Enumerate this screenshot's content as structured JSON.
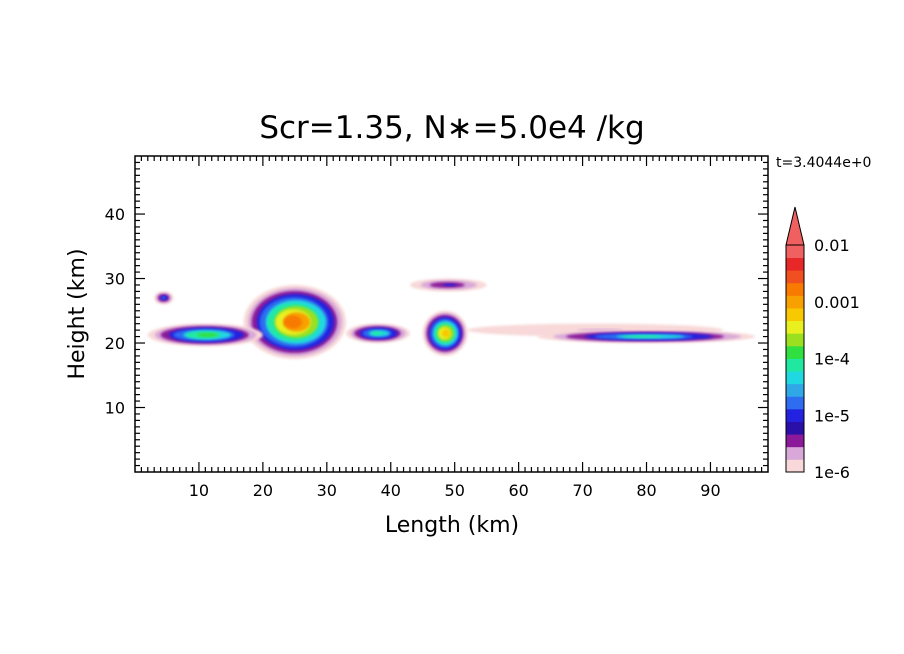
{
  "chart_data": {
    "type": "heatmap",
    "title": "Scr=1.35, N∗=5.0e4 /kg",
    "time_label": "t=3.4044e+0",
    "xlabel": "Length  (km)",
    "ylabel": "Height  (km)",
    "xlim": [
      0,
      99
    ],
    "ylim": [
      0,
      49
    ],
    "x_ticks": [
      10,
      20,
      30,
      40,
      50,
      60,
      70,
      80,
      90
    ],
    "y_ticks": [
      10,
      20,
      30,
      40
    ],
    "colorbar": {
      "scale": "log",
      "range": [
        1e-06,
        0.01
      ],
      "labels": [
        "0.01",
        "0.001",
        "1e-4",
        "1e-5",
        "1e-6"
      ],
      "label_values": [
        0.01,
        0.001,
        0.0001,
        1e-05,
        1e-06
      ],
      "extend": "max",
      "colors": [
        "#f8d8d8",
        "#d8a8d8",
        "#8a1a9a",
        "#2a10a8",
        "#2222e0",
        "#2e6cf0",
        "#30a8e8",
        "#20d8e0",
        "#20e8a0",
        "#30e040",
        "#9ae020",
        "#e8f020",
        "#f8c800",
        "#f8a000",
        "#f87a00",
        "#f05020",
        "#e82828",
        "#f06060"
      ]
    },
    "regions": [
      {
        "name": "core-main",
        "x": [
          17,
          33
        ],
        "y": [
          17.5,
          29
        ],
        "peak_level": 0.003
      },
      {
        "name": "left-layer",
        "x": [
          2,
          20
        ],
        "y": [
          19.5,
          23
        ],
        "peak_level": 0.0002
      },
      {
        "name": "small-patch-left",
        "x": [
          3,
          6
        ],
        "y": [
          26,
          28
        ],
        "peak_level": 2e-05
      },
      {
        "name": "mid-layer",
        "x": [
          33,
          43
        ],
        "y": [
          20,
          23
        ],
        "peak_level": 0.0001
      },
      {
        "name": "second-cell",
        "x": [
          45,
          52
        ],
        "y": [
          18,
          25
        ],
        "peak_level": 0.001
      },
      {
        "name": "upper-patch",
        "x": [
          43,
          55
        ],
        "y": [
          28,
          30
        ],
        "peak_level": 1e-05
      },
      {
        "name": "thin-trail",
        "x": [
          52,
          92
        ],
        "y": [
          21,
          23
        ],
        "peak_level": 2e-06
      },
      {
        "name": "right-patches",
        "x": [
          63,
          97
        ],
        "y": [
          20,
          22
        ],
        "peak_level": 0.0001
      }
    ]
  }
}
